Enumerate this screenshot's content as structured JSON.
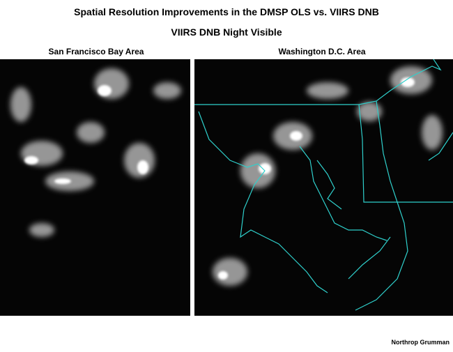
{
  "header": {
    "title": "Spatial Resolution Improvements in the DMSP OLS vs. VIIRS DNB",
    "subtitle": "VIIRS DNB Night Visible"
  },
  "panels": [
    {
      "label": "San Francisco Bay Area"
    },
    {
      "label": "Washington D.C. Area"
    }
  ],
  "credit": "Northrop Grumman"
}
